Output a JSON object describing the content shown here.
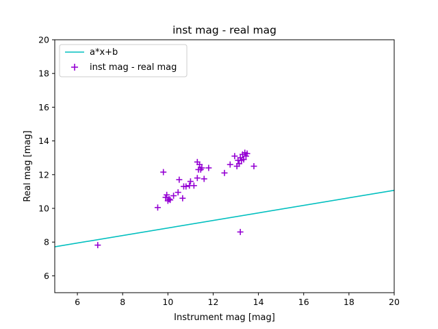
{
  "chart_data": {
    "type": "scatter",
    "title": "inst mag - real mag",
    "xlabel": "Instrument mag [mag]",
    "ylabel": "Real mag [mag]",
    "xlim": [
      5,
      20
    ],
    "ylim": [
      5,
      20
    ],
    "xticks": [
      6,
      8,
      10,
      12,
      14,
      16,
      18,
      20
    ],
    "yticks": [
      6,
      8,
      10,
      12,
      14,
      16,
      18,
      20
    ],
    "grid": false,
    "legend_position": "upper-left",
    "series": [
      {
        "name": "a*x+b",
        "kind": "line",
        "color": "#00bfbf",
        "x": [
          5,
          20
        ],
        "y": [
          7.72,
          11.07
        ]
      },
      {
        "name": "inst mag - real mag",
        "kind": "scatter",
        "marker": "plus",
        "color": "#9400d3",
        "x": [
          6.9,
          9.55,
          9.8,
          9.9,
          9.95,
          10.0,
          10.05,
          10.1,
          10.25,
          10.45,
          10.5,
          10.65,
          10.7,
          10.8,
          10.95,
          11.0,
          11.15,
          11.3,
          11.35,
          11.3,
          11.4,
          11.45,
          11.5,
          11.6,
          11.8,
          12.5,
          12.75,
          12.95,
          13.05,
          13.1,
          13.15,
          13.2,
          13.25,
          13.3,
          13.35,
          13.4,
          13.45,
          13.5,
          13.2,
          13.8
        ],
        "y": [
          7.82,
          10.05,
          12.15,
          10.65,
          10.8,
          10.45,
          10.55,
          10.5,
          10.75,
          10.95,
          11.7,
          10.6,
          11.3,
          11.3,
          11.35,
          11.6,
          11.35,
          11.8,
          12.3,
          12.75,
          12.6,
          12.3,
          12.4,
          11.75,
          12.4,
          12.1,
          12.6,
          13.1,
          12.5,
          12.85,
          12.65,
          13.0,
          12.85,
          13.2,
          12.9,
          13.3,
          13.1,
          13.25,
          8.6,
          12.5
        ]
      }
    ]
  }
}
